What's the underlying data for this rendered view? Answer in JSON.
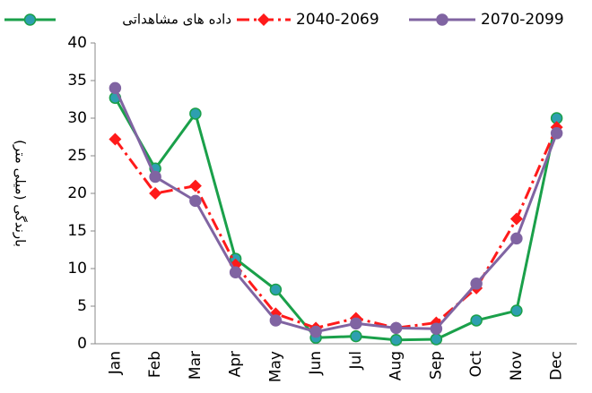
{
  "chart_data": {
    "type": "line",
    "y_label": "بارندگی (میلی متر)",
    "categories": [
      "Jan",
      "Feb",
      "Mar",
      "Apr",
      "May",
      "Jun",
      "Jul",
      "Aug",
      "Sep",
      "Oct",
      "Nov",
      "Dec"
    ],
    "series": [
      {
        "name": "داده های مشاهداتی",
        "color": "#1aa04a",
        "marker": "circle",
        "marker_color": "#2e9fb0",
        "dash": false,
        "values": [
          32.7,
          23.3,
          30.6,
          11.3,
          7.2,
          0.8,
          1.0,
          0.5,
          0.6,
          3.1,
          4.4,
          30.0
        ]
      },
      {
        "name": "2040-2069",
        "color": "#ff1a1a",
        "marker": "diamond",
        "marker_color": "#ff1a1a",
        "dash": true,
        "values": [
          27.2,
          20.0,
          21.0,
          10.5,
          4.0,
          2.1,
          3.4,
          2.1,
          2.8,
          7.4,
          16.6,
          28.8
        ]
      },
      {
        "name": "2070-2099",
        "color": "#8064a2",
        "marker": "circle",
        "marker_color": "#8064a2",
        "dash": false,
        "values": [
          34.0,
          22.2,
          19.0,
          9.5,
          3.1,
          1.6,
          2.7,
          2.1,
          2.0,
          8.0,
          14.0,
          28.0
        ]
      }
    ],
    "ylim": [
      0,
      40
    ],
    "yticks": [
      0,
      5,
      10,
      15,
      20,
      25,
      30,
      35,
      40
    ],
    "grid": false
  }
}
